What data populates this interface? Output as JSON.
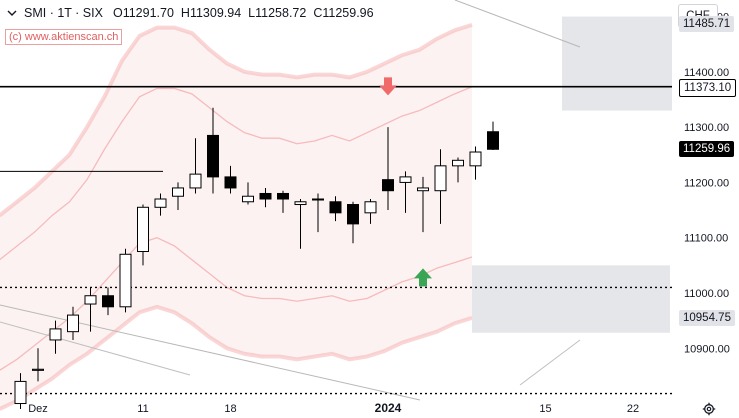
{
  "header": {
    "symbol": "SMI · 1T · SIX",
    "open_label": "O",
    "open": "11291.70",
    "high_label": "H",
    "high": "11309.94",
    "low_label": "L",
    "low": "11258.72",
    "close_label": "C",
    "close": "11259.96",
    "watermark": "(c) www.aktienscan.ch"
  },
  "currency": "CHF",
  "price_tags": {
    "upper_zone": "11485.71",
    "resistance": "11373.10",
    "last": "11259.96",
    "lower_zone": "10954.75"
  },
  "colors": {
    "up_candle": "#ffffff",
    "down_candle": "#000000",
    "band": "#f5b5b5",
    "zone": "#e2e3e8",
    "arrow_down": "#f06a6a",
    "arrow_up": "#3aa655"
  },
  "chart_data": {
    "type": "candlestick",
    "ylim": [
      10810,
      11530
    ],
    "y_ticks": [
      {
        "value": 10900,
        "label": "10900.00"
      },
      {
        "value": 11000,
        "label": "11000.00"
      },
      {
        "value": 11100,
        "label": "11100.00"
      },
      {
        "value": 11200,
        "label": "11200.00"
      },
      {
        "value": 11300,
        "label": "11300.00"
      },
      {
        "value": 11400,
        "label": "11400.00"
      },
      {
        "value": 11500,
        "label": "11500.00"
      }
    ],
    "x_ticks": [
      {
        "label": "Dez",
        "day_index": 1
      },
      {
        "label": "11",
        "day_index": 7
      },
      {
        "label": "18",
        "day_index": 12
      },
      {
        "label": "2024",
        "day_index": 21
      },
      {
        "label": "15",
        "day_index": 30
      },
      {
        "label": "22",
        "day_index": 35
      }
    ],
    "candles": [
      {
        "o": 10800,
        "h": 10855,
        "l": 10790,
        "c": 10840
      },
      {
        "o": 10860,
        "h": 10900,
        "l": 10840,
        "c": 10862
      },
      {
        "o": 10915,
        "h": 10950,
        "l": 10890,
        "c": 10935
      },
      {
        "o": 10930,
        "h": 10975,
        "l": 10915,
        "c": 10960
      },
      {
        "o": 10980,
        "h": 11010,
        "l": 10930,
        "c": 10995
      },
      {
        "o": 10995,
        "h": 11010,
        "l": 10960,
        "c": 10975
      },
      {
        "o": 10975,
        "h": 11080,
        "l": 10965,
        "c": 11070
      },
      {
        "o": 11075,
        "h": 11160,
        "l": 11050,
        "c": 11155
      },
      {
        "o": 11155,
        "h": 11180,
        "l": 11140,
        "c": 11170
      },
      {
        "o": 11175,
        "h": 11200,
        "l": 11150,
        "c": 11190
      },
      {
        "o": 11190,
        "h": 11280,
        "l": 11180,
        "c": 11215
      },
      {
        "o": 11285,
        "h": 11335,
        "l": 11180,
        "c": 11210
      },
      {
        "o": 11210,
        "h": 11230,
        "l": 11180,
        "c": 11190
      },
      {
        "o": 11165,
        "h": 11200,
        "l": 11160,
        "c": 11175
      },
      {
        "o": 11180,
        "h": 11190,
        "l": 11155,
        "c": 11170
      },
      {
        "o": 11180,
        "h": 11185,
        "l": 11145,
        "c": 11170
      },
      {
        "o": 11160,
        "h": 11170,
        "l": 11080,
        "c": 11165
      },
      {
        "o": 11170,
        "h": 11180,
        "l": 11110,
        "c": 11170
      },
      {
        "o": 11165,
        "h": 11175,
        "l": 11130,
        "c": 11145
      },
      {
        "o": 11160,
        "h": 11165,
        "l": 11090,
        "c": 11125
      },
      {
        "o": 11145,
        "h": 11170,
        "l": 11125,
        "c": 11165
      },
      {
        "o": 11205,
        "h": 11300,
        "l": 11150,
        "c": 11185
      },
      {
        "o": 11200,
        "h": 11220,
        "l": 11145,
        "c": 11210
      },
      {
        "o": 11185,
        "h": 11210,
        "l": 11110,
        "c": 11190
      },
      {
        "o": 11185,
        "h": 11260,
        "l": 11125,
        "c": 11230
      },
      {
        "o": 11230,
        "h": 11245,
        "l": 11200,
        "c": 11240
      },
      {
        "o": 11230,
        "h": 11265,
        "l": 11205,
        "c": 11255
      },
      {
        "o": 11291.7,
        "h": 11309.94,
        "l": 11258.72,
        "c": 11259.96
      }
    ],
    "resistance_level": 11373.1,
    "dotted_levels": [
      11010,
      10818
    ],
    "short_level": 11220,
    "zones": [
      {
        "y_top": 11500,
        "y_bottom": 11330
      },
      {
        "y_top": 11050,
        "y_bottom": 10928
      }
    ],
    "band_upper_outer": [
      11140,
      11165,
      11190,
      11220,
      11250,
      11300,
      11355,
      11420,
      11465,
      11480,
      11480,
      11470,
      11440,
      11415,
      11400,
      11395,
      11395,
      11390,
      11395,
      11395,
      11390,
      11400,
      11415,
      11430,
      11440,
      11460,
      11475,
      11485
    ],
    "band_upper_inner": [
      11060,
      11085,
      11110,
      11140,
      11165,
      11205,
      11260,
      11310,
      11355,
      11370,
      11370,
      11360,
      11335,
      11310,
      11290,
      11280,
      11280,
      11270,
      11275,
      11285,
      11275,
      11290,
      11305,
      11320,
      11330,
      11345,
      11360,
      11373
    ],
    "band_lower_inner": [
      10860,
      10880,
      10905,
      10930,
      10955,
      10985,
      11020,
      11055,
      11090,
      11100,
      11085,
      11060,
      11035,
      11010,
      10995,
      10990,
      10990,
      10985,
      10990,
      10995,
      10985,
      10990,
      11005,
      11020,
      11030,
      11045,
      11055,
      11065
    ],
    "band_lower_outer": [
      10790,
      10805,
      10825,
      10845,
      10870,
      10890,
      10915,
      10940,
      10965,
      10975,
      10965,
      10945,
      10920,
      10900,
      10890,
      10885,
      10885,
      10880,
      10885,
      10890,
      10880,
      10885,
      10895,
      10910,
      10920,
      10930,
      10945,
      10955
    ]
  }
}
